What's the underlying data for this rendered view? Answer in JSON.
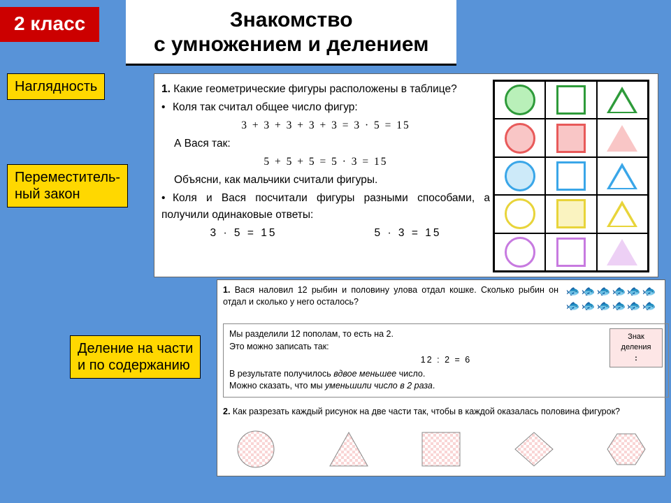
{
  "header": {
    "grade": "2 класс",
    "title_l1": "Знакомство",
    "title_l2": "с умножением и делением"
  },
  "tabs": {
    "t1": "Наглядность",
    "t2_l1": "Переместитель-",
    "t2_l2": "ный закон",
    "t3_l1": "Деление на части",
    "t3_l2": "и по содержанию"
  },
  "panel1": {
    "l1": "Какие геометрические фигуры расположены в таблице?",
    "l2": "Коля так считал общее число фигур:",
    "eq1": "3 + 3 + 3 + 3 + 3 = 3 · 5 = 15",
    "l3": "А Вася так:",
    "eq2": "5 + 5 + 5 = 5 · 3 = 15",
    "l4": "Объясни, как мальчики считали фигуры.",
    "l5": "Коля и Вася посчитали фигуры разными способами, а получили одинаковые ответы:",
    "eq3a": "3 · 5 = 15",
    "eq3b": "5 · 3 = 15"
  },
  "shapes_grid": {
    "rows": 5,
    "cols": 3,
    "cells": [
      {
        "shape": "circle",
        "stroke": "#2e9b3a",
        "fill": "#b9f0b9"
      },
      {
        "shape": "square",
        "stroke": "#2e9b3a",
        "fill": "#ffffff"
      },
      {
        "shape": "triangle",
        "stroke": "#2e9b3a",
        "fill": "#ffffff"
      },
      {
        "shape": "circle",
        "stroke": "#e85a5a",
        "fill": "#f9c6c6"
      },
      {
        "shape": "square",
        "stroke": "#e85a5a",
        "fill": "#f9c6c6"
      },
      {
        "shape": "triangle",
        "stroke": "#e85a5a",
        "fill": "#f9c6c6",
        "filled": true
      },
      {
        "shape": "circle",
        "stroke": "#3aa6e8",
        "fill": "#cdeaf9"
      },
      {
        "shape": "square",
        "stroke": "#3aa6e8",
        "fill": "#ffffff"
      },
      {
        "shape": "triangle",
        "stroke": "#3aa6e8",
        "fill": "#ffffff"
      },
      {
        "shape": "circle",
        "stroke": "#e8d43a",
        "fill": "#ffffff"
      },
      {
        "shape": "square",
        "stroke": "#e8d43a",
        "fill": "#faf3c0"
      },
      {
        "shape": "triangle",
        "stroke": "#e8d43a",
        "fill": "#ffffff"
      },
      {
        "shape": "circle",
        "stroke": "#c77ae0",
        "fill": "#ffffff"
      },
      {
        "shape": "square",
        "stroke": "#c77ae0",
        "fill": "#ffffff"
      },
      {
        "shape": "triangle",
        "stroke": "#c77ae0",
        "fill": "#edd0f5",
        "filled": true
      }
    ]
  },
  "panel2": {
    "q1": "Вася наловил 12 рыбин и половину улова отдал кошке. Сколько рыбин он отдал и сколько у него осталось?",
    "fish_count": 12,
    "box_l1": "Мы разделили 12 пополам, то есть на 2.",
    "box_l2": "Это можно записать так:",
    "box_eq": "12 : 2 = 6",
    "box_l3_a": "В результате получилось ",
    "box_l3_i": "вдвое меньшее",
    "box_l3_b": " число.",
    "box_l4_a": "Можно сказать, что мы ",
    "box_l4_i": "уменьшили число в 2 раза",
    "box_l4_b": ".",
    "sign_l1": "Знак",
    "sign_l2": "деления",
    "sign_l3": ":",
    "q2": "Как разрезать каждый рисунок на две части так, чтобы в каждой оказалась половина фигурок?"
  },
  "cut_shapes": {
    "fill_pattern": "#f9d5d5",
    "stroke": "#888888"
  }
}
